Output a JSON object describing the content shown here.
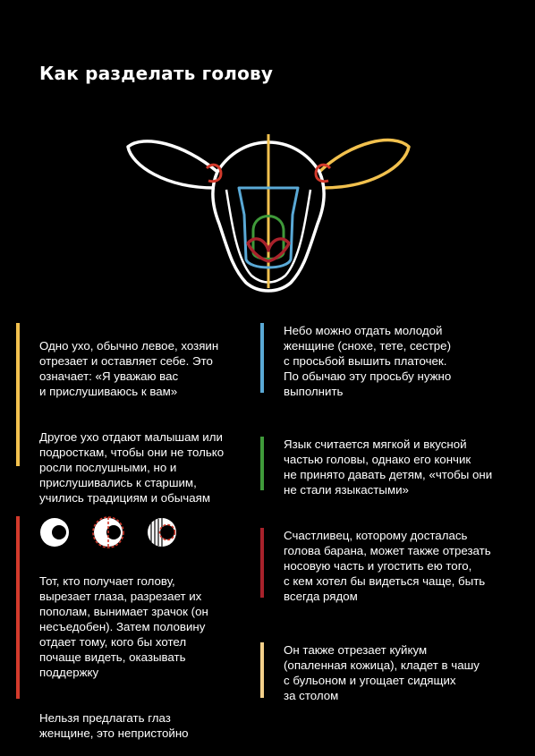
{
  "title": "Как разделать голову",
  "colors": {
    "background": "#000000",
    "outline": "#ffffff",
    "ear": "#f2c14e",
    "palate": "#5aa9d6",
    "tongue": "#3f9a3a",
    "eye": "#d33a2c",
    "nose": "#a8222b",
    "skin": "#f3d08a"
  },
  "blocks": [
    {
      "id": "ear",
      "color": "#f2c14e",
      "paragraphs": [
        "Одно ухо, обычно левое, хозяин\nотрезает и оставляет себе. Это\nозначает: «Я уважаю вас\nи прислушиваюсь к вам»",
        "Другое ухо отдают малышам или\nподросткам, чтобы они не только\nросли послушными, но и\nприслушивались к старшим,\nучились традициям и обычаям"
      ]
    },
    {
      "id": "palate",
      "color": "#5aa9d6",
      "paragraphs": [
        "Небо можно отдать молодой\nженщине (снохе, тете, сестре)\nс просьбой вышить платочек.\nПо обычаю эту просьбу нужно\nвыполнить"
      ]
    },
    {
      "id": "tongue",
      "color": "#3f9a3a",
      "paragraphs": [
        "Язык считается мягкой и вкусной\nчастью головы, однако его кончик\nне принято давать детям, «чтобы они\nне стали языкастыми»"
      ]
    },
    {
      "id": "eye",
      "color": "#d33a2c",
      "paragraphs": [
        "Тот, кто получает голову,\nвырезает глаза, разрезает их\nпополам, вынимает зрачок (он\nнесъедобен). Затем половину\nотдает тому, кого бы хотел\nпочаще видеть, оказывать\nподдержку",
        "Нельзя предлагать глаз\nженщине, это непристойно"
      ]
    },
    {
      "id": "nose",
      "color": "#a8222b",
      "paragraphs": [
        "Счастливец, которому досталась\nголова барана, может также отрезать\nносовую часть и угостить ею  того,\nс кем хотел бы видеться чаще, быть\nвсегда рядом"
      ]
    },
    {
      "id": "skin",
      "color": "#f3d08a",
      "paragraphs": [
        "Он также отрезает куйкум\n(опаленная кожица), кладет в чашу\nс бульоном и угощает сидящих\nза столом"
      ]
    }
  ]
}
